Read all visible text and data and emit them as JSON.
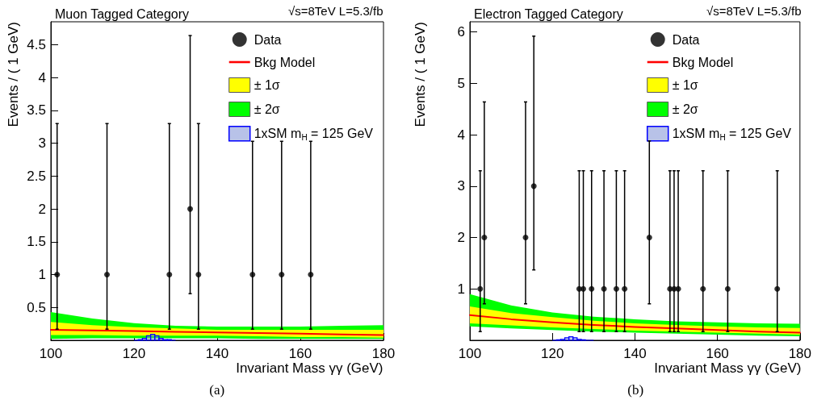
{
  "chart_data": [
    {
      "type": "scatter",
      "title": "Muon Tagged Category",
      "xlabel": "Invariant Mass γγ (GeV)",
      "ylabel": "Events / ( 1 GeV)",
      "annotations": [
        "√s=8TeV L=5.3/fb",
        "(a)"
      ],
      "xlim": [
        100,
        180
      ],
      "xticks": [
        100,
        120,
        140,
        160,
        180
      ],
      "ylim": [
        0,
        4.85
      ],
      "yticks": [
        0.5,
        1,
        1.5,
        2,
        2.5,
        3,
        3.5,
        4,
        4.5
      ],
      "grid": false,
      "legend": "top right",
      "series": [
        {
          "name": "Data",
          "marker": "circle",
          "color": "#000000",
          "x": [
            101.5,
            113.5,
            128.5,
            133.5,
            135.5,
            148.5,
            155.5,
            162.5
          ],
          "values": [
            1,
            1,
            1,
            2,
            1,
            1,
            1,
            1
          ],
          "errors": [
            [
              0.17,
              3.3
            ],
            [
              0.17,
              3.3
            ],
            [
              0.17,
              3.3
            ],
            [
              0.71,
              4.64
            ],
            [
              0.17,
              3.3
            ],
            [
              0.17,
              3.03
            ],
            [
              0.17,
              3.03
            ],
            [
              0.17,
              3.03
            ]
          ]
        },
        {
          "name": "Bkg Model",
          "type": "line",
          "color": "#ff0000",
          "line_style": "solid",
          "x": [
            100,
            110,
            120,
            130,
            140,
            150,
            160,
            170,
            180
          ],
          "values": [
            0.16,
            0.15,
            0.14,
            0.13,
            0.12,
            0.11,
            0.1,
            0.09,
            0.08
          ]
        },
        {
          "name": "± 1σ",
          "type": "line",
          "color": "#ffff00",
          "x": [
            100,
            110,
            120,
            130,
            140,
            150,
            160,
            170,
            180
          ],
          "values": [
            null,
            null,
            null,
            null,
            null,
            null,
            null,
            null,
            null
          ],
          "lower": [
            0.08,
            0.08,
            0.07,
            0.07,
            0.07,
            0.06,
            0.05,
            0.05,
            0.04
          ],
          "upper": [
            0.28,
            0.23,
            0.2,
            0.18,
            0.16,
            0.16,
            0.16,
            0.16,
            0.16
          ]
        },
        {
          "name": "± 2σ",
          "type": "line",
          "color": "#00ff00",
          "x": [
            100,
            110,
            120,
            130,
            140,
            150,
            160,
            170,
            180
          ],
          "values": [
            null,
            null,
            null,
            null,
            null,
            null,
            null,
            null,
            null
          ],
          "lower": [
            0.02,
            0.03,
            0.03,
            0.03,
            0.03,
            0.02,
            0.02,
            0.02,
            0.02
          ],
          "upper": [
            0.43,
            0.33,
            0.26,
            0.22,
            0.21,
            0.21,
            0.21,
            0.22,
            0.23
          ]
        },
        {
          "name": "1xSM m$_{H}$ = 125 GeV",
          "type": "histogram",
          "color": "#0000ff",
          "bins": [
            120,
            121,
            122,
            123,
            124,
            125,
            126,
            127,
            128,
            129,
            130
          ],
          "values": [
            0,
            0.01,
            0.03,
            0.07,
            0.09,
            0.07,
            0.03,
            0.01,
            0.01,
            0
          ]
        }
      ]
    },
    {
      "type": "scatter",
      "title": "Electron Tagged Category",
      "xlabel": "Invariant Mass γγ (GeV)",
      "ylabel": "Events / ( 1 GeV)",
      "annotations": [
        "√s=8TeV L=5.3/fb",
        "(b)"
      ],
      "xlim": [
        100,
        180
      ],
      "xticks": [
        100,
        120,
        140,
        160,
        180
      ],
      "ylim": [
        0,
        6.2
      ],
      "yticks": [
        1,
        2,
        3,
        4,
        5,
        6
      ],
      "grid": false,
      "legend": "top right",
      "series": [
        {
          "name": "Data",
          "marker": "circle",
          "color": "#000000",
          "x": [
            102.5,
            103.5,
            113.5,
            115.5,
            126.5,
            127.5,
            129.5,
            132.5,
            135.5,
            137.5,
            143.5,
            148.5,
            149.5,
            150.5,
            156.5,
            162.5,
            174.5
          ],
          "values": [
            1,
            2,
            2,
            3,
            1,
            1,
            1,
            1,
            1,
            1,
            2,
            1,
            1,
            1,
            1,
            1,
            1
          ],
          "errors": [
            [
              0.17,
              3.3
            ],
            [
              0.71,
              4.64
            ],
            [
              0.71,
              4.64
            ],
            [
              1.37,
              5.92
            ],
            [
              0.17,
              3.3
            ],
            [
              0.17,
              3.3
            ],
            [
              0.17,
              3.3
            ],
            [
              0.17,
              3.3
            ],
            [
              0.17,
              3.3
            ],
            [
              0.17,
              3.3
            ],
            [
              0.71,
              3.88
            ],
            [
              0.17,
              3.3
            ],
            [
              0.17,
              3.3
            ],
            [
              0.17,
              3.3
            ],
            [
              0.17,
              3.3
            ],
            [
              0.17,
              3.3
            ],
            [
              0.17,
              3.3
            ]
          ]
        },
        {
          "name": "Bkg Model",
          "type": "line",
          "color": "#ff0000",
          "line_style": "solid",
          "x": [
            100,
            110,
            120,
            130,
            140,
            150,
            160,
            170,
            180
          ],
          "values": [
            0.49,
            0.41,
            0.35,
            0.3,
            0.26,
            0.23,
            0.2,
            0.17,
            0.15
          ]
        },
        {
          "name": "± 1σ",
          "type": "line",
          "color": "#ffff00",
          "x": [
            100,
            110,
            120,
            130,
            140,
            150,
            160,
            170,
            180
          ],
          "values": [
            null,
            null,
            null,
            null,
            null,
            null,
            null,
            null,
            null
          ],
          "lower": [
            0.33,
            0.29,
            0.25,
            0.22,
            0.19,
            0.17,
            0.15,
            0.13,
            0.11
          ],
          "upper": [
            0.66,
            0.53,
            0.45,
            0.38,
            0.33,
            0.3,
            0.27,
            0.25,
            0.24
          ]
        },
        {
          "name": "± 2σ",
          "type": "line",
          "color": "#00ff00",
          "x": [
            100,
            110,
            120,
            130,
            140,
            150,
            160,
            170,
            180
          ],
          "values": [
            null,
            null,
            null,
            null,
            null,
            null,
            null,
            null,
            null
          ],
          "lower": [
            0.27,
            0.23,
            0.2,
            0.17,
            0.15,
            0.13,
            0.11,
            0.09,
            0.08
          ],
          "upper": [
            0.9,
            0.68,
            0.54,
            0.46,
            0.41,
            0.37,
            0.35,
            0.33,
            0.32
          ]
        },
        {
          "name": "1xSM m$_{H}$ = 125 GeV",
          "type": "histogram",
          "color": "#0000ff",
          "bins": [
            120,
            121,
            122,
            123,
            124,
            125,
            126,
            127,
            128,
            129,
            130
          ],
          "values": [
            0,
            0.01,
            0.02,
            0.05,
            0.07,
            0.05,
            0.02,
            0.01,
            0,
            0
          ]
        }
      ]
    }
  ]
}
